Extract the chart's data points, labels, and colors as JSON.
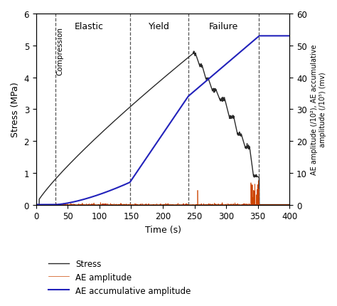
{
  "xlabel": "Time (s)",
  "ylabel_left": "Stress (MPa)",
  "ylabel_right": "AE amplitude (/10²), AE accumulative\namplitude (/10⁵) (mv)",
  "xlim": [
    0,
    400
  ],
  "ylim_left": [
    0,
    6
  ],
  "ylim_right": [
    0,
    60
  ],
  "xticks": [
    0,
    50,
    100,
    150,
    200,
    250,
    300,
    350,
    400
  ],
  "yticks_left": [
    0,
    1,
    2,
    3,
    4,
    5,
    6
  ],
  "yticks_right": [
    0,
    10,
    20,
    30,
    40,
    50,
    60
  ],
  "vlines": [
    30,
    148,
    240,
    352
  ],
  "vline_labels": [
    "Compression",
    "Elastic",
    "Yield",
    "Failure"
  ],
  "stress_color": "#2a2a2a",
  "ae_amplitude_color": "#cc4400",
  "ae_accum_color": "#2222bb",
  "legend_labels": [
    "Stress",
    "AE amplitude",
    "AE accumulative amplitude"
  ],
  "figsize": [
    4.74,
    4.31
  ],
  "dpi": 100
}
